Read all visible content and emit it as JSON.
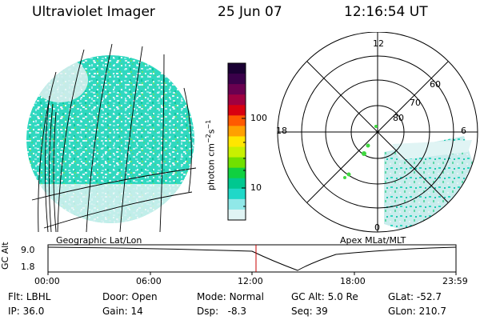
{
  "header": {
    "instrument": "Ultraviolet Imager",
    "date": "25 Jun 07",
    "time": "12:16:54 UT"
  },
  "left_panel": {
    "caption": "Geographic Lat/Lon"
  },
  "right_panel": {
    "caption": "Apex MLat/MLT",
    "mlt_labels": {
      "top": "12",
      "left": "18",
      "right": "6",
      "bottom": "0"
    },
    "lat_labels": [
      "60",
      "70",
      "80"
    ]
  },
  "colorbar": {
    "unit": "photon cm",
    "unit_sup1": "−2",
    "unit_mid": "s",
    "unit_sup2": "−1",
    "ticks": [
      "100",
      "10"
    ],
    "colors": [
      "#1a0033",
      "#3a004a",
      "#6a0050",
      "#a00040",
      "#d80010",
      "#ff5a00",
      "#ffa000",
      "#ffe600",
      "#c8f000",
      "#70e000",
      "#10d040",
      "#00c890",
      "#20d8c8",
      "#90e8e8",
      "#e0f4f4"
    ]
  },
  "altitude_plot": {
    "ylabel": "GC Alt",
    "yticks": [
      "9.0",
      "1.8"
    ],
    "xticks": [
      "00:00",
      "06:00",
      "12:00",
      "18:00",
      "23:59"
    ],
    "current_time_marker": "12:17"
  },
  "status": {
    "flt_label": "Flt:",
    "flt": "LBHL",
    "ip_label": "IP:",
    "ip": "36.0",
    "door_label": "Door:",
    "door": "Open",
    "gain_label": "Gain:",
    "gain": "14",
    "mode_label": "Mode:",
    "mode": "Normal",
    "dsp_label": "Dsp:",
    "dsp": "-8.3",
    "gcalt_label": "GC Alt:",
    "gcalt": "5.0 Re",
    "seq_label": "Seq:",
    "seq": "39",
    "glat_label": "GLat:",
    "glat": "-52.7",
    "glon_label": "GLon:",
    "glon": "210.7"
  }
}
